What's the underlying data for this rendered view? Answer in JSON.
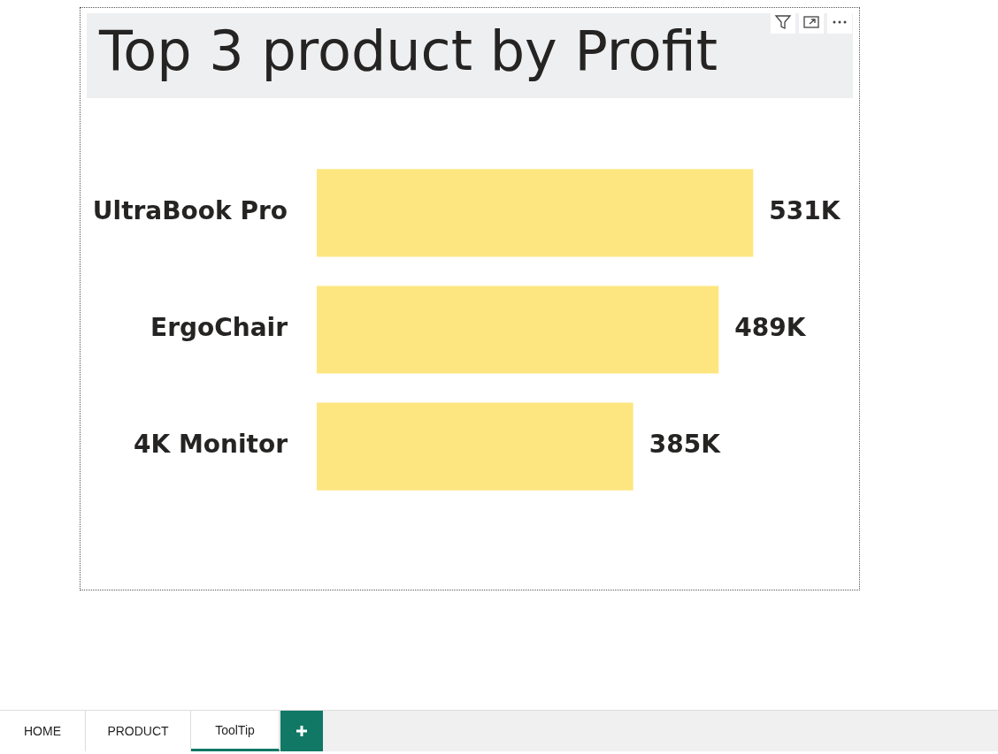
{
  "chart_data": {
    "type": "bar",
    "orientation": "horizontal",
    "title": "Top 3 product by Profit",
    "categories": [
      "UltraBook Pro",
      "ErgoChair",
      "4K Monitor"
    ],
    "values": [
      531000,
      489000,
      385000
    ],
    "value_labels": [
      "531K",
      "489K",
      "385K"
    ],
    "color": "#fde680",
    "legend": false,
    "annotations": [
      "HOME",
      "PRODUCT",
      "ToolTip"
    ]
  }
}
